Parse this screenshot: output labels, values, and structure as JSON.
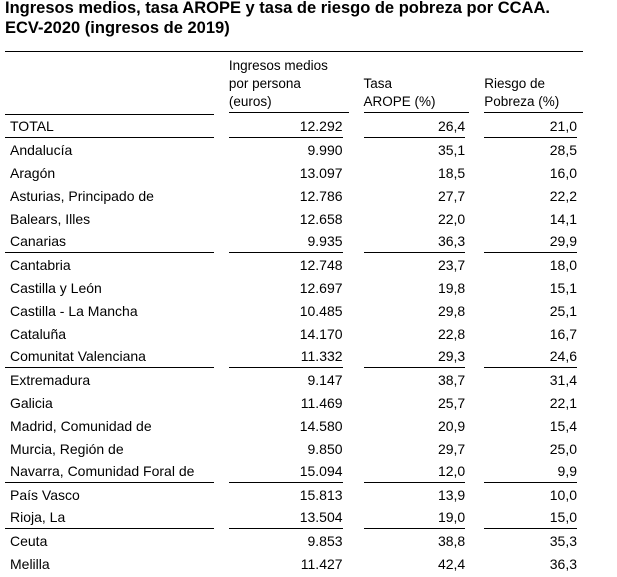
{
  "title": {
    "line1": "Ingresos medios, tasa AROPE y tasa de riesgo de pobreza por CCAA.",
    "line2": "ECV-2020 (ingresos de 2019)"
  },
  "columns": {
    "income": [
      "Ingresos medios",
      "por persona",
      "(euros)"
    ],
    "arope": [
      "Tasa",
      "AROPE (%)"
    ],
    "poverty": [
      "Riesgo de",
      "Pobreza (%)"
    ]
  },
  "rows": [
    {
      "region": "TOTAL",
      "income": "12.292",
      "arope": "26,4",
      "poverty": "21,0"
    },
    {
      "region": "Andalucía",
      "income": "9.990",
      "arope": "35,1",
      "poverty": "28,5"
    },
    {
      "region": "Aragón",
      "income": "13.097",
      "arope": "18,5",
      "poverty": "16,0"
    },
    {
      "region": "Asturias, Principado de",
      "income": "12.786",
      "arope": "27,7",
      "poverty": "22,2"
    },
    {
      "region": "Balears, Illes",
      "income": "12.658",
      "arope": "22,0",
      "poverty": "14,1"
    },
    {
      "region": "Canarias",
      "income": "9.935",
      "arope": "36,3",
      "poverty": "29,9"
    },
    {
      "region": "Cantabria",
      "income": "12.748",
      "arope": "23,7",
      "poverty": "18,0"
    },
    {
      "region": "Castilla y León",
      "income": "12.697",
      "arope": "19,8",
      "poverty": "15,1"
    },
    {
      "region": "Castilla - La Mancha",
      "income": "10.485",
      "arope": "29,8",
      "poverty": "25,1"
    },
    {
      "region": "Cataluña",
      "income": "14.170",
      "arope": "22,8",
      "poverty": "16,7"
    },
    {
      "region": "Comunitat Valenciana",
      "income": "11.332",
      "arope": "29,3",
      "poverty": "24,6"
    },
    {
      "region": "Extremadura",
      "income": "9.147",
      "arope": "38,7",
      "poverty": "31,4"
    },
    {
      "region": "Galicia",
      "income": "11.469",
      "arope": "25,7",
      "poverty": "22,1"
    },
    {
      "region": "Madrid, Comunidad de",
      "income": "14.580",
      "arope": "20,9",
      "poverty": "15,4"
    },
    {
      "region": "Murcia, Región de",
      "income": "9.850",
      "arope": "29,7",
      "poverty": "25,0"
    },
    {
      "region": "Navarra, Comunidad Foral de",
      "income": "15.094",
      "arope": "12,0",
      "poverty": "9,9"
    },
    {
      "region": "País Vasco",
      "income": "15.813",
      "arope": "13,9",
      "poverty": "10,0"
    },
    {
      "region": "Rioja, La",
      "income": "13.504",
      "arope": "19,0",
      "poverty": "15,0"
    },
    {
      "region": "Ceuta",
      "income": "9.853",
      "arope": "38,8",
      "poverty": "35,3"
    },
    {
      "region": "Melilla",
      "income": "11.427",
      "arope": "42,4",
      "poverty": "36,3"
    }
  ]
}
